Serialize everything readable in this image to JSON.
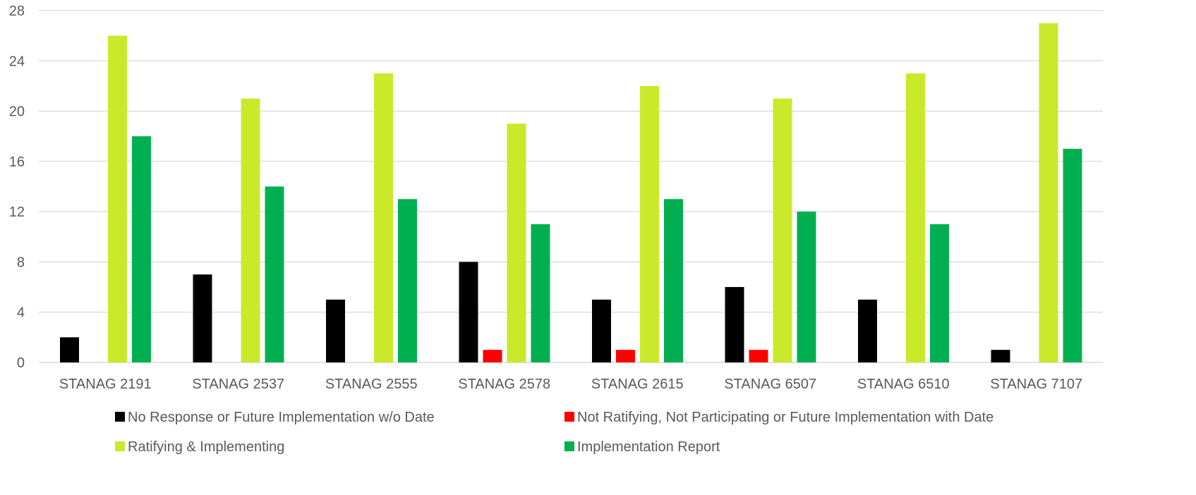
{
  "chart_data": {
    "type": "bar",
    "title": "",
    "xlabel": "",
    "ylabel": "",
    "ylim": [
      0,
      28
    ],
    "yticks": [
      0,
      4,
      8,
      12,
      16,
      20,
      24,
      28
    ],
    "grid": true,
    "legend_position": "bottom",
    "categories": [
      "STANAG 2191",
      "STANAG 2537",
      "STANAG 2555",
      "STANAG 2578",
      "STANAG 2615",
      "STANAG 6507",
      "STANAG 6510",
      "STANAG 7107"
    ],
    "series": [
      {
        "name": "No Response or Future Implementation w/o Date",
        "color": "#000000",
        "values": [
          2,
          7,
          5,
          8,
          5,
          6,
          5,
          1
        ]
      },
      {
        "name": "Not Ratifying, Not Participating or Future Implementation with Date",
        "color": "#ff0000",
        "values": [
          0,
          0,
          0,
          1,
          1,
          1,
          0,
          0
        ]
      },
      {
        "name": "Ratifying & Implementing",
        "color": "#c9e92a",
        "values": [
          26,
          21,
          23,
          19,
          22,
          21,
          23,
          27
        ]
      },
      {
        "name": "Implementation Report",
        "color": "#00b050",
        "values": [
          18,
          14,
          13,
          11,
          13,
          12,
          11,
          17
        ]
      }
    ]
  }
}
